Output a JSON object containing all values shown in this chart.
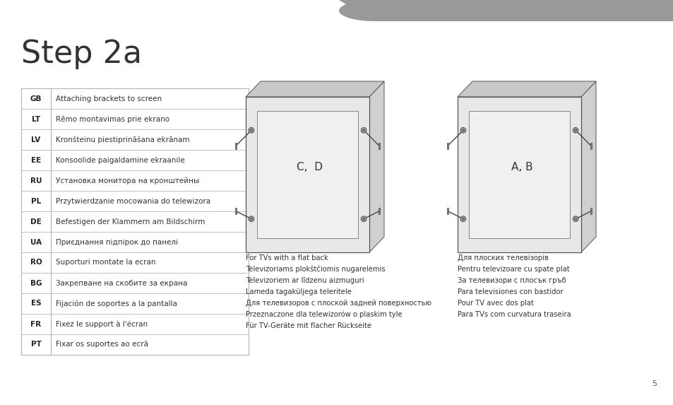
{
  "title": "Step 2a",
  "bg_color": "#ffffff",
  "header_bar_color": "#999999",
  "title_fontsize": 32,
  "title_color": "#333333",
  "table_rows": [
    [
      "GB",
      "Attaching brackets to screen"
    ],
    [
      "LT",
      "Rēmo montavimas prie ekrano"
    ],
    [
      "LV",
      "Kronšteinu piestiprināšana ekrānam"
    ],
    [
      "EE",
      "Konsoolide paigaldamine ekraanile"
    ],
    [
      "RU",
      "Установка монитора на кронштейны"
    ],
    [
      "PL",
      "Przytwierdzanie mocowania do telewizora"
    ],
    [
      "DE",
      "Befestigen der Klammern am Bildschirm"
    ],
    [
      "UA",
      "Приєднання підпірок до панелі"
    ],
    [
      "RO",
      "Suporturi montate la ecran"
    ],
    [
      "BG",
      "Закрепване на скобите за екрана"
    ],
    [
      "ES",
      "Fijación de soportes a la pantalla"
    ],
    [
      "FR",
      "Fixez le support à l'écran"
    ],
    [
      "PT",
      "Fixar os suportes ao ecrã"
    ]
  ],
  "caption_left_lines": [
    "For TVs with a flat back",
    "Televizoriams plokštčiomis nugarelėmis",
    "Televizoriem ar līdzenu aizmuguri",
    "Lameda tagaküljega teleritele",
    "Для телевизоров с плоской задней поверхностью",
    "Przeznaczone dla telewizorów o plaskim tyle",
    "Für TV-Geräte mit flacher Rückseite"
  ],
  "caption_right_lines": [
    "Для плоских телевізорів",
    "Pentru televizoare cu spate plat",
    "За телевизори с плосък гръб",
    "Para televisiones con bastidor",
    "Pour TV avec dos plat",
    "Para TVs com curvatura traseira"
  ],
  "page_number": "5"
}
